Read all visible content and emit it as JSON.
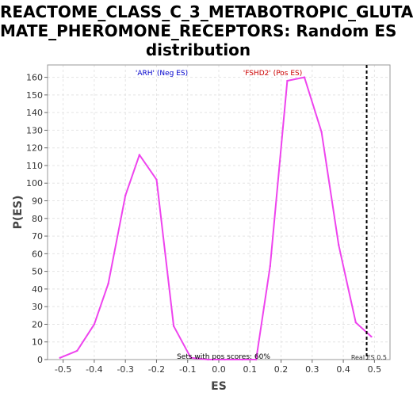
{
  "title_lines": [
    "REACTOME_CLASS_C_3_METABOTROPIC_GLUTA",
    "MATE_PHEROMONE_RECEPTORS: Random ES",
    "distribution"
  ],
  "chart_data": {
    "type": "line",
    "title": "REACTOME_CLASS_C_3_METABOTROPIC_GLUTAMATE_PHEROMONE_RECEPTORS: Random ES distribution",
    "xlabel": "ES",
    "ylabel": "P(ES)",
    "xlim": [
      -0.55,
      0.55
    ],
    "ylim": [
      0,
      167
    ],
    "xticks": [
      -0.5,
      -0.4,
      -0.3,
      -0.2,
      -0.1,
      0.0,
      0.1,
      0.2,
      0.3,
      0.4,
      0.5
    ],
    "xtick_labels": [
      "-0.5",
      "-0.4",
      "-0.3",
      "-0.2",
      "-0.1",
      "0.0",
      "0.1",
      "0.2",
      "0.3",
      "0.4",
      "0.5"
    ],
    "yticks": [
      0,
      10,
      20,
      30,
      40,
      50,
      60,
      70,
      80,
      90,
      100,
      110,
      120,
      130,
      140,
      150,
      160
    ],
    "grid": true,
    "series": [
      {
        "color": "#ee44ee",
        "x": [
          -0.51,
          -0.455,
          -0.4,
          -0.355,
          -0.3,
          -0.255,
          -0.2,
          -0.145,
          -0.09,
          -0.035,
          0.02,
          0.075,
          0.12,
          0.165,
          0.22,
          0.275,
          0.33,
          0.385,
          0.44,
          0.49
        ],
        "y": [
          1,
          5,
          20,
          43,
          93,
          116,
          102,
          19,
          1,
          0,
          0,
          0,
          0,
          53,
          158,
          160,
          129,
          65,
          21,
          13
        ]
      }
    ],
    "real_es": 0.475,
    "real_es_label": "Real ES 0.5",
    "annotations": [
      {
        "text": "'ARH' (Neg ES)",
        "color": "#0000cc"
      },
      {
        "text": "'FSHD2' (Pos ES)",
        "color": "#cc0000"
      },
      {
        "text": "Sets with pos scores: 60%",
        "color": "#000000"
      }
    ]
  }
}
